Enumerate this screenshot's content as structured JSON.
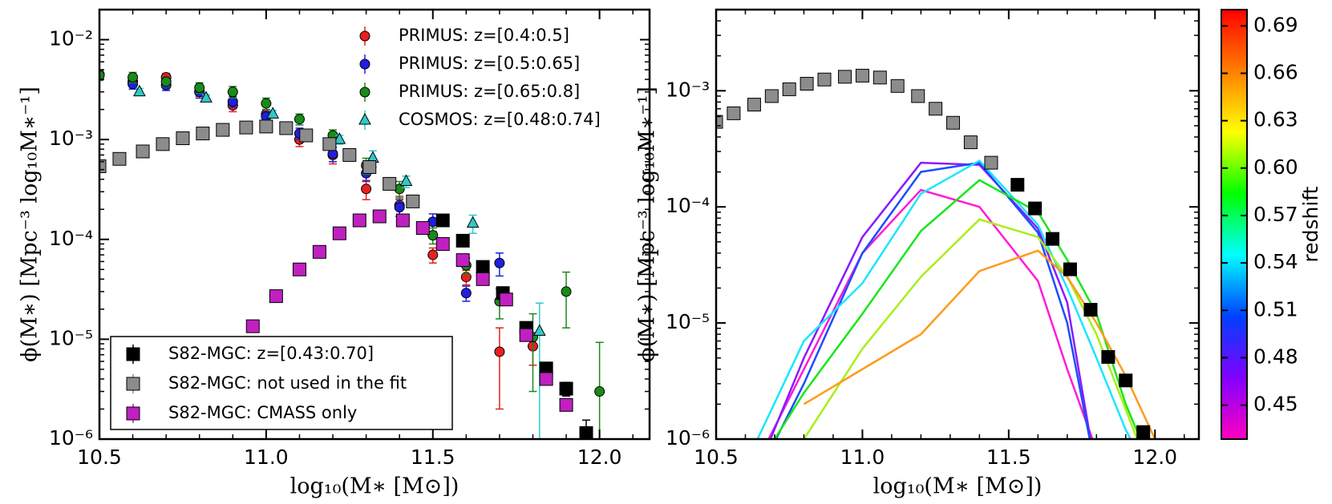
{
  "chart_data": [
    {
      "type": "scatter",
      "xlabel": "log₁₀(M∗ [M⊙])",
      "ylabel": "ϕ(M∗) [Mpc⁻³ log₁₀M∗⁻¹]",
      "xlim": [
        10.5,
        12.15
      ],
      "xticks": [
        10.5,
        {
          "value": 11,
          "label": "11.0"
        },
        11.5,
        {
          "value": 12,
          "label": "12.0"
        }
      ],
      "ylim": [
        1e-06,
        0.02
      ],
      "ylog": true,
      "yticks": [
        {
          "value": 1e-06,
          "label": "10⁻⁶"
        },
        {
          "value": 1e-05,
          "label": "10⁻⁵"
        },
        {
          "value": 0.0001,
          "label": "10⁻⁴"
        },
        {
          "value": 0.001,
          "label": "10⁻³"
        },
        {
          "value": 0.01,
          "label": "10⁻²"
        }
      ],
      "series": [
        {
          "name": "PRIMUS: z=[0.4:0.5]",
          "color": "#e8201f",
          "marker": "circle",
          "legend": "upper right",
          "x": [
            10.5,
            10.6,
            10.7,
            10.8,
            10.9,
            11.0,
            11.1,
            11.2,
            11.3,
            11.4,
            11.5,
            11.6,
            11.7,
            11.8
          ],
          "values": [
            0.0045,
            0.0038,
            0.0042,
            0.003,
            0.0022,
            0.0018,
            0.001,
            0.0007,
            0.00032,
            0.00022,
            7e-05,
            4.2e-05,
            7.5e-06,
            8.5e-06
          ],
          "errors": [
            0.0005,
            0.0004,
            0.0004,
            0.0003,
            0.0003,
            0.0002,
            0.00015,
            0.00013,
            7e-05,
            5e-05,
            1.2e-05,
            7e-06,
            5.5e-06,
            3e-06
          ]
        },
        {
          "name": "PRIMUS: z=[0.5:0.65]",
          "color": "#1f1fe0",
          "marker": "circle",
          "legend": "upper right",
          "x": [
            10.6,
            10.7,
            10.8,
            10.9,
            11.0,
            11.1,
            11.2,
            11.3,
            11.4,
            11.5,
            11.6,
            11.7
          ],
          "values": [
            0.0036,
            0.0035,
            0.003,
            0.0024,
            0.0017,
            0.00115,
            0.00072,
            0.00046,
            0.00021,
            0.00015,
            2.9e-05,
            5.8e-05
          ],
          "errors": [
            0.0004,
            0.0004,
            0.0004,
            0.0003,
            0.0002,
            0.00015,
            0.00012,
            8e-05,
            4e-05,
            3e-05,
            5e-06,
            1.5e-05
          ]
        },
        {
          "name": "PRIMUS: z=[0.65:0.8]",
          "color": "#1a8a1a",
          "marker": "circle",
          "legend": "upper right",
          "x": [
            10.5,
            10.6,
            10.7,
            10.8,
            10.9,
            11.0,
            11.1,
            11.2,
            11.3,
            11.4,
            11.5,
            11.6,
            11.7,
            11.8,
            11.9,
            12.0
          ],
          "values": [
            0.0044,
            0.0042,
            0.0038,
            0.0033,
            0.003,
            0.0023,
            0.0016,
            0.0011,
            0.00055,
            0.00032,
            0.00011,
            5.5e-05,
            2.4e-05,
            1.05e-05,
            3e-05,
            3e-06
          ],
          "errors": [
            0.0005,
            0.0005,
            0.0004,
            0.0004,
            0.0004,
            0.0003,
            0.0002,
            0.00015,
            0.0001,
            6e-05,
            2e-05,
            1e-05,
            8e-06,
            7.5e-06,
            1.7e-05,
            6.3e-06
          ]
        },
        {
          "name": "COSMOS: z=[0.48:0.74]",
          "color": "#2fc9c9",
          "marker": "triangle",
          "legend": "upper right",
          "x": [
            10.62,
            10.82,
            11.02,
            11.22,
            11.32,
            11.42,
            11.62,
            11.82
          ],
          "values": [
            0.003,
            0.0026,
            0.0018,
            0.001,
            0.00065,
            0.00038,
            0.000145,
            1.2e-05
          ],
          "errors": [
            0.00025,
            0.0002,
            0.00015,
            0.0001,
            0.00012,
            5e-05,
            3e-05,
            1.1e-05
          ]
        },
        {
          "name": "S82-MGC: z=[0.43:0.70]",
          "color": "#000000",
          "marker": "square",
          "legend": "lower left",
          "x": [
            11.53,
            11.59,
            11.65,
            11.71,
            11.78,
            11.84,
            11.9,
            11.96
          ],
          "values": [
            0.000155,
            9.7e-05,
            5.3e-05,
            2.9e-05,
            1.3e-05,
            5.1e-06,
            3.2e-06,
            1.15e-06
          ],
          "errors": [
            1e-05,
            7e-06,
            4e-06,
            2.5e-06,
            1.5e-06,
            7e-07,
            5e-07,
            4e-07
          ]
        },
        {
          "name": "S82-MGC: not used in the fit",
          "color": "#8c8c8c",
          "marker": "square",
          "legend": "lower left",
          "x": [
            10.5,
            10.56,
            10.63,
            10.69,
            10.75,
            10.81,
            10.87,
            10.94,
            11.0,
            11.06,
            11.12,
            11.19,
            11.25,
            11.31,
            11.37,
            11.44
          ],
          "values": [
            0.00054,
            0.00064,
            0.00076,
            0.0009,
            0.00103,
            0.00115,
            0.00125,
            0.00132,
            0.00135,
            0.0013,
            0.0011,
            0.0009,
            0.0007,
            0.00053,
            0.00036,
            0.00024
          ]
        },
        {
          "name": "S82-MGC: CMASS only",
          "color": "#c020c0",
          "marker": "square",
          "legend": "lower left",
          "x": [
            10.96,
            11.03,
            11.1,
            11.16,
            11.22,
            11.28,
            11.34,
            11.41,
            11.47,
            11.53,
            11.59,
            11.65,
            11.72,
            11.78,
            11.84,
            11.9
          ],
          "values": [
            1.35e-05,
            2.7e-05,
            5e-05,
            7.5e-05,
            0.000115,
            0.000155,
            0.00017,
            0.000155,
            0.00013,
            9e-05,
            6.2e-05,
            4e-05,
            2.5e-05,
            1.1e-05,
            4e-06,
            2.2e-06
          ]
        }
      ]
    },
    {
      "type": "line",
      "xlabel": "log₁₀(M∗ [M⊙])",
      "ylabel": "ϕ(M∗) [Mpc⁻³ log₁₀M∗⁻¹]",
      "xlim": [
        10.5,
        12.15
      ],
      "xticks": [
        10.5,
        {
          "value": 11,
          "label": "11.0"
        },
        11.5,
        {
          "value": 12,
          "label": "12.0"
        }
      ],
      "ylim": [
        1e-06,
        0.005
      ],
      "ylog": true,
      "yticks": [
        {
          "value": 1e-06,
          "label": "10⁻⁶"
        },
        {
          "value": 1e-05,
          "label": "10⁻⁵"
        },
        {
          "value": 0.0001,
          "label": "10⁻⁴"
        },
        {
          "value": 0.001,
          "label": "10⁻³"
        }
      ],
      "x": [
        10.6,
        10.8,
        11.0,
        11.2,
        11.4,
        11.6,
        11.7,
        11.8,
        11.9,
        12.0
      ],
      "series": [
        {
          "color": "#ff1ad9",
          "values": [
            4e-07,
            4e-06,
            4e-05,
            0.00014,
            0.0001,
            2.3e-05,
            4e-06,
            8e-07,
            null,
            null
          ]
        },
        {
          "color": "#8a1aff",
          "values": [
            3e-07,
            5e-06,
            5.5e-05,
            0.00024,
            0.00023,
            6.5e-05,
            1.5e-05,
            5e-07,
            null,
            null
          ]
        },
        {
          "color": "#1a4dff",
          "values": [
            3e-07,
            3e-06,
            4e-05,
            0.0002,
            0.00024,
            6e-05,
            1e-05,
            5e-07,
            null,
            null
          ]
        },
        {
          "color": "#1ae6ff",
          "values": [
            6e-07,
            7e-06,
            2.2e-05,
            0.00013,
            0.00025,
            7e-05,
            2e-05,
            5e-06,
            1.2e-06,
            4e-07
          ]
        },
        {
          "color": "#1ae61a",
          "values": [
            4e-07,
            2.5e-06,
            1.2e-05,
            6.2e-05,
            0.00017,
            9e-05,
            3.5e-05,
            1.2e-05,
            2e-06,
            5e-07
          ]
        },
        {
          "color": "#a6f01a",
          "values": [
            null,
            1e-06,
            6e-06,
            2.5e-05,
            7.8e-05,
            5.5e-05,
            2.5e-05,
            8e-06,
            1.8e-06,
            4e-07
          ]
        },
        {
          "color": "#ff9a1a",
          "values": [
            null,
            2e-06,
            4e-06,
            8e-06,
            2.8e-05,
            4.2e-05,
            2.5e-05,
            1e-05,
            3.5e-06,
            1e-06
          ]
        }
      ],
      "points": [
        {
          "color": "#8c8c8c",
          "x": [
            10.5,
            10.56,
            10.63,
            10.69,
            10.75,
            10.81,
            10.87,
            10.94,
            11.0,
            11.06,
            11.12,
            11.19,
            11.25,
            11.31,
            11.37,
            11.44
          ],
          "values": [
            0.00054,
            0.00064,
            0.00076,
            0.0009,
            0.00103,
            0.00115,
            0.00125,
            0.00132,
            0.00135,
            0.0013,
            0.0011,
            0.0009,
            0.0007,
            0.00053,
            0.00036,
            0.00024
          ]
        },
        {
          "color": "#000000",
          "x": [
            11.53,
            11.59,
            11.65,
            11.71,
            11.78,
            11.84,
            11.9,
            11.96
          ],
          "values": [
            0.000155,
            9.7e-05,
            5.3e-05,
            2.9e-05,
            1.3e-05,
            5.1e-06,
            3.2e-06,
            1.15e-06
          ]
        }
      ],
      "colorbar": {
        "label": "redshift",
        "lim": [
          0.4285,
          0.7003
        ],
        "ticks": [
          0.45,
          0.48,
          0.51,
          0.54,
          0.57,
          {
            "value": 0.6,
            "label": "0.60"
          },
          0.63,
          0.66,
          0.69
        ],
        "colors": [
          "#ff00bf",
          "#8000ff",
          "#0040ff",
          "#00ffff",
          "#00ff00",
          "#ffff00",
          "#ff8000",
          "#ff0000"
        ]
      }
    }
  ]
}
